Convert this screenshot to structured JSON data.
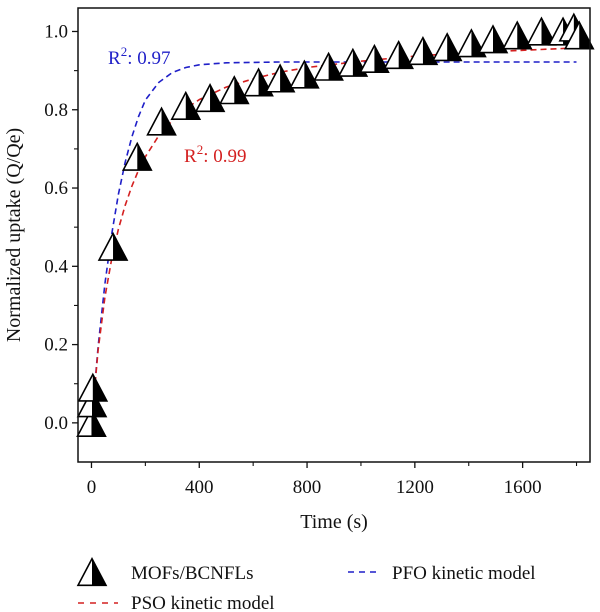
{
  "chart_data": {
    "type": "scatter",
    "xlabel": "Time (s)",
    "ylabel": "Normalized uptake (Q/Qe)",
    "xlim": [
      -50,
      1850
    ],
    "ylim": [
      -0.1,
      1.06
    ],
    "x_ticks": [
      0,
      400,
      800,
      1200,
      1600
    ],
    "x_tick_labels": [
      "0",
      "400",
      "800",
      "1200",
      "1600"
    ],
    "y_ticks": [
      0.0,
      0.2,
      0.4,
      0.6,
      0.8,
      1.0
    ],
    "y_tick_labels": [
      "0.0",
      "0.2",
      "0.4",
      "0.6",
      "0.8",
      "1.0"
    ],
    "grid": false,
    "legend_position": "bottom",
    "series": [
      {
        "name": "MOFs/BCNFLs",
        "kind": "marker",
        "marker": "half-filled-triangle",
        "color": "#000000",
        "x": [
          0,
          2,
          5,
          80,
          170,
          260,
          350,
          440,
          530,
          620,
          700,
          790,
          880,
          970,
          1050,
          1140,
          1230,
          1320,
          1410,
          1490,
          1580,
          1670,
          1750,
          1790,
          1810
        ],
        "y": [
          0.0,
          0.05,
          0.09,
          0.45,
          0.68,
          0.77,
          0.81,
          0.83,
          0.85,
          0.87,
          0.88,
          0.89,
          0.91,
          0.92,
          0.93,
          0.94,
          0.95,
          0.96,
          0.97,
          0.98,
          0.99,
          1.0,
          1.0,
          1.01,
          0.99
        ]
      },
      {
        "name": "PFO kinetic model",
        "kind": "dashed-line",
        "color": "#1f1fc8",
        "x": [
          0,
          25,
          50,
          75,
          100,
          125,
          150,
          175,
          200,
          250,
          300,
          350,
          400,
          500,
          600,
          700,
          800,
          1000,
          1200,
          1400,
          1600,
          1800
        ],
        "y": [
          0.0,
          0.197,
          0.355,
          0.482,
          0.584,
          0.666,
          0.731,
          0.783,
          0.825,
          0.87,
          0.895,
          0.908,
          0.915,
          0.92,
          0.921,
          0.922,
          0.922,
          0.922,
          0.922,
          0.922,
          0.922,
          0.922
        ]
      },
      {
        "name": "PSO kinetic model",
        "kind": "dashed-line",
        "color": "#d42020",
        "x": [
          0,
          25,
          50,
          75,
          100,
          125,
          150,
          175,
          200,
          250,
          300,
          350,
          400,
          500,
          600,
          700,
          800,
          1000,
          1200,
          1400,
          1600,
          1800
        ],
        "y": [
          0.0,
          0.188,
          0.321,
          0.419,
          0.495,
          0.556,
          0.605,
          0.646,
          0.68,
          0.734,
          0.772,
          0.803,
          0.826,
          0.858,
          0.879,
          0.896,
          0.908,
          0.924,
          0.937,
          0.946,
          0.952,
          0.958
        ]
      }
    ],
    "annotations": [
      {
        "base": "R",
        "sup": "2",
        "rest": ": 0.97",
        "color": "#1f1fc8",
        "for": "PFO kinetic model"
      },
      {
        "base": "R",
        "sup": "2",
        "rest": ": 0.99",
        "color": "#d42020",
        "for": "PSO kinetic model"
      }
    ]
  }
}
